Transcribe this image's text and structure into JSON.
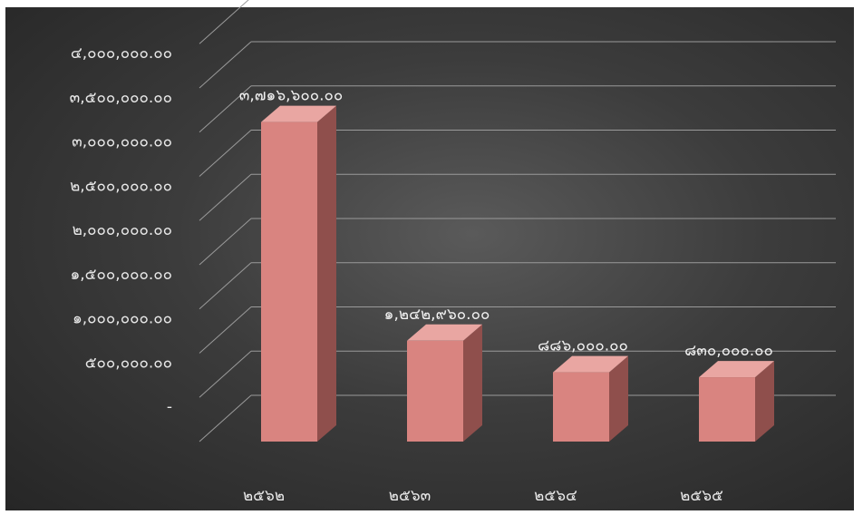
{
  "chart_data": {
    "type": "bar",
    "title": "",
    "xlabel": "",
    "ylabel": "",
    "categories": [
      "๒๕๖๒",
      "๒๕๖๓",
      "๒๕๖๔",
      "๒๕๖๕"
    ],
    "values": [
      3716600,
      1242960,
      886000,
      830000
    ],
    "data_labels": [
      "๓,๗๑๖,๖๐๐.๐๐",
      "๑,๒๔๒,๙๖๐.๐๐",
      "๘๘๖,๐๐๐.๐๐",
      "๘๓๐,๐๐๐.๐๐"
    ],
    "ylim": [
      0,
      4000000
    ],
    "y_ticks": [
      0,
      500000,
      1000000,
      1500000,
      2000000,
      2500000,
      3000000,
      3500000,
      4000000
    ],
    "y_tick_labels": [
      "-",
      "๕๐๐,๐๐๐.๐๐",
      "๑,๐๐๐,๐๐๐.๐๐",
      "๑,๕๐๐,๐๐๐.๐๐",
      "๒,๐๐๐,๐๐๐.๐๐",
      "๒,๕๐๐,๐๐๐.๐๐",
      "๓,๐๐๐,๐๐๐.๐๐",
      "๓,๕๐๐,๐๐๐.๐๐",
      "๔,๐๐๐,๐๐๐.๐๐"
    ],
    "grid": true,
    "style": "3d-column",
    "colors": {
      "bar_front": "#d98480",
      "bar_side": "#8f4f4c",
      "bar_top": "#e9a6a2",
      "grid": "#9a9a9a",
      "text": "#e8e8e8"
    }
  }
}
